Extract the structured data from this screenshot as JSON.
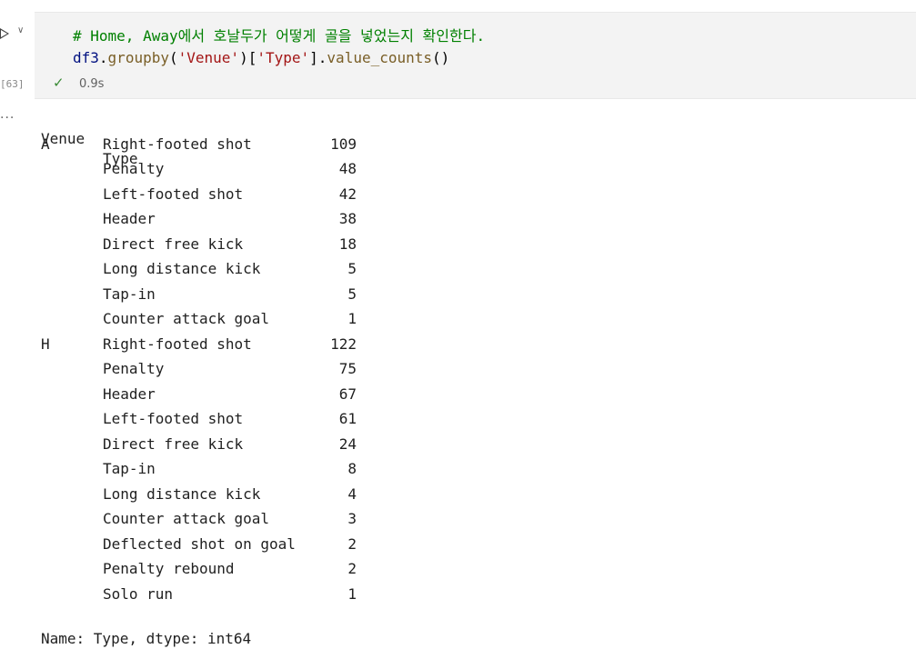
{
  "cell": {
    "run_chevron": "∨",
    "code_comment": "# Home, Away에서 호날두가 어떻게 골을 넣었는지 확인한다.",
    "code": {
      "ident": "df3",
      "dot1": ".",
      "method1": "groupby",
      "open1": "(",
      "arg1": "'Venue'",
      "close1": ")",
      "open2": "[",
      "arg2": "'Type'",
      "close2": "]",
      "dot2": ".",
      "method2": "value_counts",
      "call": "()"
    },
    "execution_count": "[63]",
    "status_check": "✓",
    "exec_time": "0.9s"
  },
  "output": {
    "more_icon": "...",
    "header": {
      "venue": "Venue",
      "type": "Type"
    },
    "rows": [
      {
        "venue": "A",
        "type": "Right-footed shot",
        "count": "109"
      },
      {
        "venue": "",
        "type": "Penalty",
        "count": "48"
      },
      {
        "venue": "",
        "type": "Left-footed shot",
        "count": "42"
      },
      {
        "venue": "",
        "type": "Header",
        "count": "38"
      },
      {
        "venue": "",
        "type": "Direct free kick",
        "count": "18"
      },
      {
        "venue": "",
        "type": "Long distance kick",
        "count": "5"
      },
      {
        "venue": "",
        "type": "Tap-in",
        "count": "5"
      },
      {
        "venue": "",
        "type": "Counter attack goal",
        "count": "1"
      },
      {
        "venue": "H",
        "type": "Right-footed shot",
        "count": "122"
      },
      {
        "venue": "",
        "type": "Penalty",
        "count": "75"
      },
      {
        "venue": "",
        "type": "Header",
        "count": "67"
      },
      {
        "venue": "",
        "type": "Left-footed shot",
        "count": "61"
      },
      {
        "venue": "",
        "type": "Direct free kick",
        "count": "24"
      },
      {
        "venue": "",
        "type": "Tap-in",
        "count": "8"
      },
      {
        "venue": "",
        "type": "Long distance kick",
        "count": "4"
      },
      {
        "venue": "",
        "type": "Counter attack goal",
        "count": "3"
      },
      {
        "venue": "",
        "type": "Deflected shot on goal",
        "count": "2"
      },
      {
        "venue": "",
        "type": "Penalty rebound",
        "count": "2"
      },
      {
        "venue": "",
        "type": "Solo run",
        "count": "1"
      }
    ],
    "footer": "Name: Type, dtype: int64"
  }
}
